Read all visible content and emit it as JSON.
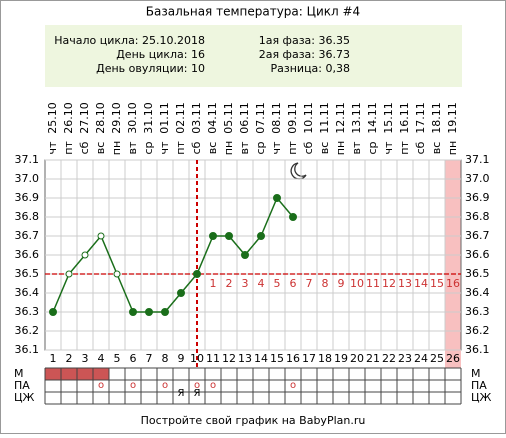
{
  "chart_data": {
    "type": "line",
    "title": "Базальная температура: Цикл #4",
    "info_left": [
      "Начало цикла: 25.10.2018",
      "День цикла: 16",
      "День овуляции: 10"
    ],
    "info_right": [
      "1ая фаза: 36.35",
      "2ая фаза: 36.73",
      "Разница: 0,38"
    ],
    "categories": [
      1,
      2,
      3,
      4,
      5,
      6,
      7,
      8,
      9,
      10,
      11,
      12,
      13,
      14,
      15,
      16,
      17,
      18,
      19,
      20,
      21,
      22,
      23,
      24,
      25,
      26
    ],
    "dates": [
      "25.10",
      "26.10",
      "27.10",
      "28.10",
      "29.10",
      "30.10",
      "31.10",
      "01.11",
      "02.11",
      "03.11",
      "04.11",
      "05.11",
      "06.11",
      "07.11",
      "08.11",
      "09.11",
      "10.11",
      "11.11",
      "12.11",
      "13.11",
      "14.11",
      "15.11",
      "16.11",
      "17.11",
      "18.11",
      "19.11"
    ],
    "weekdays": [
      "чт",
      "пт",
      "сб",
      "вс",
      "пн",
      "вт",
      "ср",
      "чт",
      "пт",
      "сб",
      "вс",
      "пн",
      "вт",
      "ср",
      "чт",
      "пт",
      "сб",
      "вс",
      "пн",
      "вт",
      "ср",
      "чт",
      "пт",
      "сб",
      "вс",
      "пн"
    ],
    "series": [
      {
        "name": "Температура",
        "color": "#1a6e1a",
        "values": [
          36.3,
          36.5,
          36.6,
          36.7,
          36.5,
          36.3,
          36.3,
          36.3,
          36.4,
          36.5,
          36.7,
          36.7,
          36.6,
          36.7,
          36.9,
          36.8,
          null,
          null,
          null,
          null,
          null,
          null,
          null,
          null,
          null,
          null
        ]
      }
    ],
    "hollow_points": [
      1,
      2,
      3,
      4
    ],
    "ylim": [
      36.1,
      37.1
    ],
    "yticks": [
      36.1,
      36.2,
      36.3,
      36.4,
      36.5,
      36.6,
      36.7,
      36.8,
      36.9,
      {
        "value": 37,
        "label": "37.0"
      },
      37.1
    ],
    "coverline": 36.5,
    "ovulation_day": 10,
    "highlight_day": 26,
    "phase2_numbers": [
      null,
      null,
      null,
      null,
      null,
      null,
      null,
      null,
      null,
      null,
      1,
      2,
      3,
      4,
      5,
      6,
      7,
      8,
      9,
      10,
      11,
      12,
      13,
      14,
      15,
      16
    ],
    "row_labels": [
      "М",
      "ПА",
      "ЦЖ"
    ],
    "menstruation": [
      true,
      true,
      true,
      true,
      false,
      false,
      false,
      false,
      false,
      false,
      false,
      false,
      false,
      false,
      false,
      false,
      false,
      false,
      false,
      false,
      false,
      false,
      false,
      false,
      false,
      false
    ],
    "pa": [
      null,
      null,
      null,
      "o",
      null,
      "o",
      null,
      "o",
      null,
      "o",
      "o",
      null,
      null,
      null,
      null,
      "o",
      null,
      null,
      null,
      null,
      null,
      null,
      null,
      null,
      null,
      null
    ],
    "cm": [
      null,
      null,
      null,
      null,
      null,
      null,
      null,
      null,
      "Я",
      "Я",
      null,
      null,
      null,
      null,
      null,
      null,
      null,
      null,
      null,
      null,
      null,
      null,
      null,
      null,
      null,
      null
    ],
    "grid": true,
    "footer": "Постройте свой график на BabyPlan.ru"
  }
}
